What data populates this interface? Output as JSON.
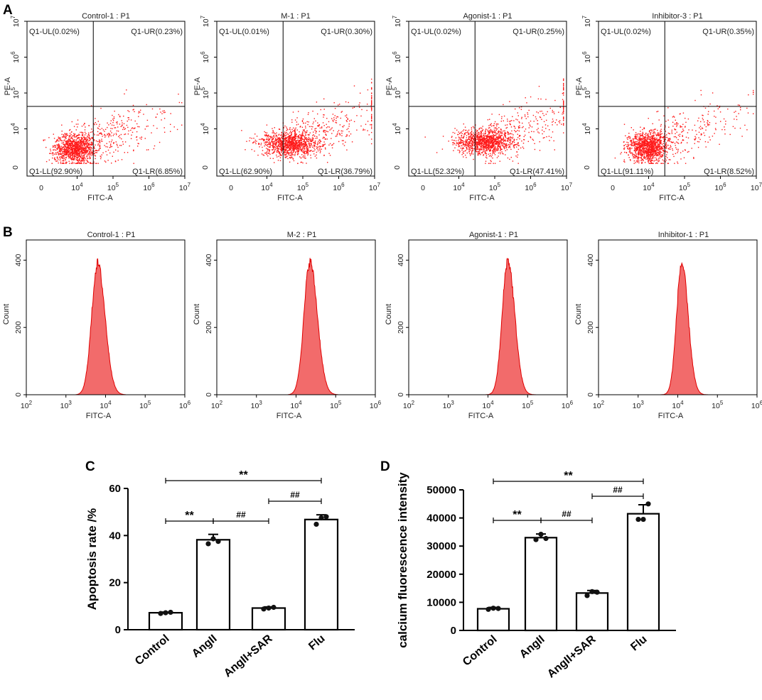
{
  "panel_labels": {
    "a": "A",
    "b": "B",
    "c": "C",
    "d": "D"
  },
  "colors": {
    "scatter": "#ff1a1a",
    "hist_fill": "#f26b6b",
    "hist_line": "#e00000",
    "axis": "#000000"
  },
  "chart_data": [
    {
      "type": "scatter",
      "panel": "A",
      "title": "Control-1 : P1",
      "xlabel": "FITC-A",
      "ylabel": "PE-A",
      "quadrants": {
        "ul": "Q1-UL(0.02%)",
        "ur": "Q1-UR(0.23%)",
        "ll": "Q1-LL(92.90%)",
        "lr": "Q1-LR(6.85%)"
      },
      "cloud": {
        "center_log": [
          3.9,
          3.45
        ],
        "spread_log": [
          0.45,
          0.4
        ],
        "tail_x": 1.2
      }
    },
    {
      "type": "scatter",
      "panel": "A",
      "title": "M-1 : P1",
      "xlabel": "FITC-A",
      "ylabel": "PE-A",
      "quadrants": {
        "ul": "Q1-UL(0.01%)",
        "ur": "Q1-UR(0.30%)",
        "ll": "Q1-LL(62.90%)",
        "lr": "Q1-LR(36.79%)"
      },
      "cloud": {
        "center_log": [
          4.6,
          3.6
        ],
        "spread_log": [
          0.65,
          0.35
        ],
        "tail_x": 1.5
      }
    },
    {
      "type": "scatter",
      "panel": "A",
      "title": "Agonist-1 : P1",
      "xlabel": "FITC-A",
      "ylabel": "PE-A",
      "quadrants": {
        "ul": "Q1-UL(0.02%)",
        "ur": "Q1-UR(0.25%)",
        "ll": "Q1-LL(52.32%)",
        "lr": "Q1-LR(47.41%)"
      },
      "cloud": {
        "center_log": [
          4.7,
          3.65
        ],
        "spread_log": [
          0.65,
          0.35
        ],
        "tail_x": 1.5
      }
    },
    {
      "type": "scatter",
      "panel": "A",
      "title": "Inhibitor-3 : P1",
      "xlabel": "FITC-A",
      "ylabel": "PE-A",
      "quadrants": {
        "ul": "Q1-UL(0.02%)",
        "ur": "Q1-UR(0.35%)",
        "ll": "Q1-LL(91.11%)",
        "lr": "Q1-LR(8.52%)"
      },
      "cloud": {
        "center_log": [
          3.95,
          3.5
        ],
        "spread_log": [
          0.45,
          0.4
        ],
        "tail_x": 1.2
      }
    },
    {
      "type": "area",
      "panel": "B",
      "title": "Control-1 : P1",
      "xlabel": "FITC-A",
      "ylabel": "Count",
      "ylim": [
        0,
        460
      ],
      "peak_log_x": 3.8,
      "peak_count": 390,
      "width_log": 0.15
    },
    {
      "type": "area",
      "panel": "B",
      "title": "M-2 : P1",
      "xlabel": "FITC-A",
      "ylabel": "Count",
      "ylim": [
        0,
        460
      ],
      "peak_log_x": 4.35,
      "peak_count": 395,
      "width_log": 0.15
    },
    {
      "type": "area",
      "panel": "B",
      "title": "Agonist-1 : P1",
      "xlabel": "FITC-A",
      "ylabel": "Count",
      "ylim": [
        0,
        460
      ],
      "peak_log_x": 4.5,
      "peak_count": 400,
      "width_log": 0.14
    },
    {
      "type": "area",
      "panel": "B",
      "title": "Inhibitor-1 : P1",
      "xlabel": "FITC-A",
      "ylabel": "Count",
      "ylim": [
        0,
        460
      ],
      "peak_log_x": 4.1,
      "peak_count": 390,
      "width_log": 0.13
    },
    {
      "type": "bar",
      "panel": "C",
      "categories": [
        "Control",
        "AngII",
        "AngII+SAR",
        "Flu"
      ],
      "values": [
        7.2,
        38.2,
        9.2,
        46.8
      ],
      "errors": [
        0.3,
        2.3,
        0.5,
        2.0
      ],
      "points": [
        [
          6.9,
          7.2,
          7.4
        ],
        [
          36.5,
          38.6,
          37.5
        ],
        [
          8.8,
          9.2,
          9.5
        ],
        [
          44.8,
          47.5,
          48.0
        ]
      ],
      "ylabel": "Apoptosis rate /%",
      "ylim": [
        0,
        60
      ],
      "yticks": [
        "0",
        "20",
        "40",
        "60"
      ],
      "brackets": [
        {
          "from": 0,
          "to": 3,
          "label": "**"
        },
        {
          "from": 0,
          "to": 1,
          "label": "**"
        },
        {
          "from": 1,
          "to": 2,
          "label": "##"
        },
        {
          "from": 2,
          "to": 3,
          "label": "##"
        }
      ]
    },
    {
      "type": "bar",
      "panel": "D",
      "categories": [
        "Control",
        "AngII",
        "AngII+SAR",
        "Flu"
      ],
      "values": [
        7700,
        33000,
        13300,
        41500
      ],
      "errors": [
        500,
        1300,
        900,
        3200
      ],
      "points": [
        [
          7500,
          7900,
          7800
        ],
        [
          32300,
          34200,
          32700
        ],
        [
          12400,
          13800,
          13600
        ],
        [
          39500,
          39500,
          45000
        ]
      ],
      "ylabel": "calcium fluorescence intensity",
      "ylim": [
        0,
        50000
      ],
      "yticks": [
        "0",
        "10000",
        "20000",
        "30000",
        "40000",
        "50000"
      ],
      "brackets": [
        {
          "from": 0,
          "to": 3,
          "label": "**"
        },
        {
          "from": 0,
          "to": 1,
          "label": "**"
        },
        {
          "from": 1,
          "to": 2,
          "label": "##"
        },
        {
          "from": 2,
          "to": 3,
          "label": "##"
        }
      ]
    }
  ]
}
